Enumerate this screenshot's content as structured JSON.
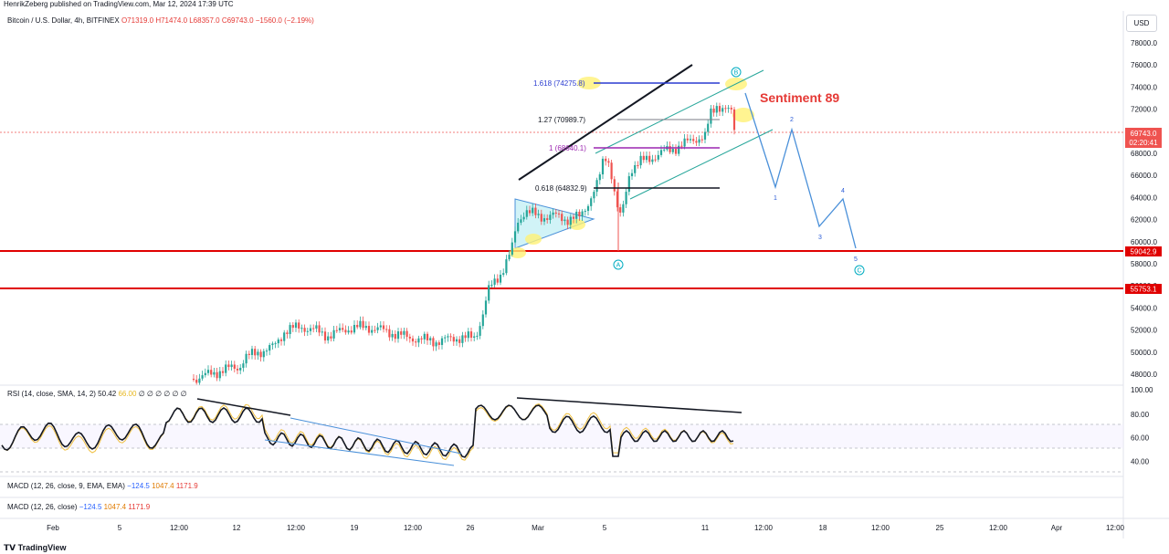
{
  "header": {
    "publisher": "HenrikZeberg published on TradingView.com, Mar 12, 2024 17:39 UTC"
  },
  "legend": {
    "symbol": "Bitcoin / U.S. Dollar, 4h, BITFINEX",
    "values": "O71319.0  H71474.0  L68357.0  C69743.0  −1560.0 (−2.19%)"
  },
  "price_axis": {
    "currency": "USD",
    "ticks": [
      "78000.0",
      "76000.0",
      "74000.0",
      "72000.0",
      "70000.0",
      "68000.0",
      "66000.0",
      "64000.0",
      "62000.0",
      "60000.0",
      "58000.0",
      "56000.0",
      "54000.0",
      "52000.0",
      "50000.0",
      "48000.0"
    ],
    "last_price": "69743.0",
    "countdown": "02:20:41",
    "level_1": "59042.9",
    "level_2": "55753.1"
  },
  "rsi": {
    "label": "RSI (14, close, SMA, 14, 2)",
    "value": "50.42",
    "value2": "66.00",
    "extra": "∅ ∅ ∅ ∅ ∅   ∅",
    "ticks": [
      "100.00",
      "80.00",
      "60.00",
      "40.00"
    ]
  },
  "macd": {
    "line1_label": "MACD (12, 26, close, 9, EMA, EMA)",
    "line2_label": "MACD (12, 26, close)",
    "v1": "−124.5",
    "v2": "1047.4",
    "v3": "1171.9"
  },
  "time_axis": [
    "Feb",
    "5",
    "12:00",
    "12",
    "12:00",
    "19",
    "12:00",
    "26",
    "Mar",
    "5",
    "11",
    "12:00",
    "18",
    "12:00",
    "25",
    "12:00",
    "Apr",
    "12:00"
  ],
  "annotations": {
    "sentiment": "Sentiment 89",
    "fib_1618": "1.618 (74275.8)",
    "fib_127": "1.27 (70989.7)",
    "fib_1": "1 (68640.1)",
    "fib_0618": "0.618 (64832.9)",
    "label_A": "A",
    "label_B": "B",
    "label_C": "C",
    "wave_1": "1",
    "wave_2": "2",
    "wave_3": "3",
    "wave_4": "4",
    "wave_5": "5"
  },
  "footer": {
    "brand": "TradingView"
  },
  "colors": {
    "up": "#26a69a",
    "down": "#ef5350",
    "support": "#e00000",
    "projection": "#4a90d9",
    "fib_top": "#2a3cd0",
    "fib_one": "#9c27b0",
    "sentiment": "#e53935"
  }
}
